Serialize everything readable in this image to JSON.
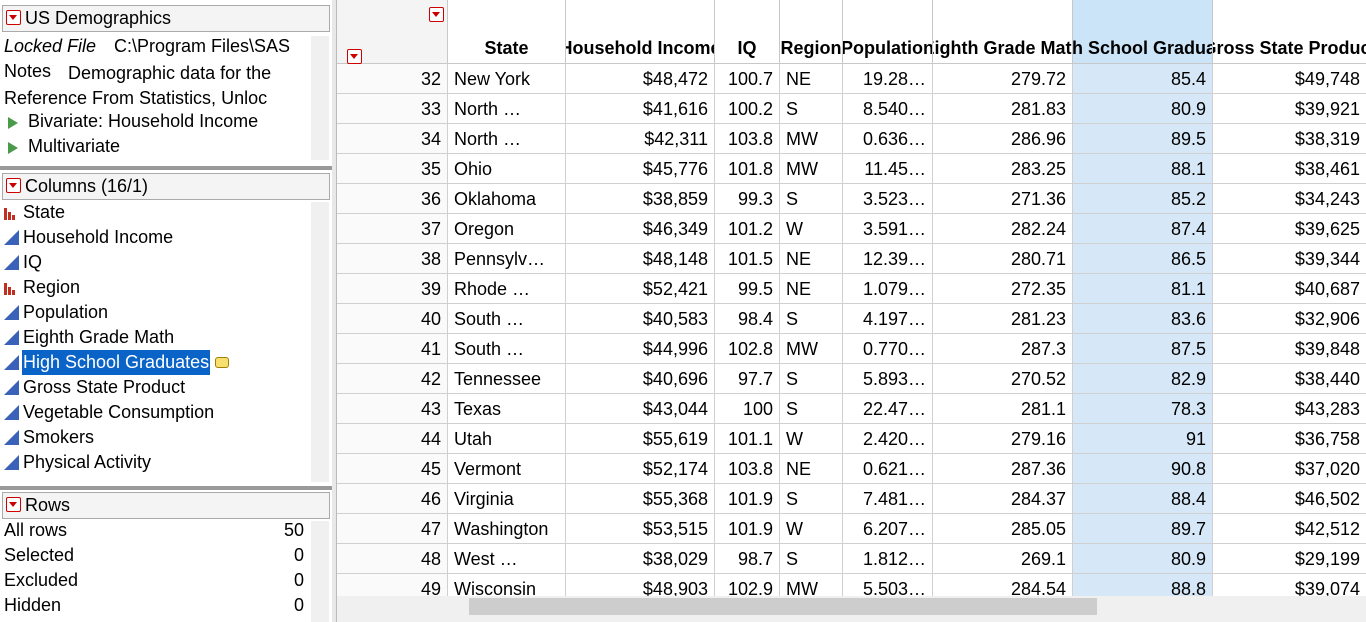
{
  "table_panel": {
    "title": "US Demographics",
    "locked_label": "Locked File",
    "locked_path": "C:\\Program Files\\SAS",
    "notes_label": "Notes",
    "notes_text": "Demographic data for the Reference From Statistics, Unloc",
    "scripts": [
      "Bivariate: Household Income",
      "Multivariate"
    ]
  },
  "columns_panel": {
    "title": "Columns (16/1)",
    "items": [
      {
        "name": "State",
        "icon": "nominal"
      },
      {
        "name": "Household Income",
        "icon": "continuous"
      },
      {
        "name": "IQ",
        "icon": "continuous"
      },
      {
        "name": "Region",
        "icon": "nominal"
      },
      {
        "name": "Population",
        "icon": "continuous"
      },
      {
        "name": "Eighth Grade Math",
        "icon": "continuous"
      },
      {
        "name": "High School Graduates",
        "icon": "continuous",
        "selected": true
      },
      {
        "name": "Gross State Product",
        "icon": "continuous"
      },
      {
        "name": "Vegetable Consumption",
        "icon": "continuous"
      },
      {
        "name": "Smokers",
        "icon": "continuous"
      },
      {
        "name": "Physical Activity",
        "icon": "continuous"
      }
    ]
  },
  "rows_panel": {
    "title": "Rows",
    "items": [
      {
        "label": "All rows",
        "value": "50"
      },
      {
        "label": "Selected",
        "value": "0"
      },
      {
        "label": "Excluded",
        "value": "0"
      },
      {
        "label": "Hidden",
        "value": "0"
      }
    ]
  },
  "table": {
    "headers": [
      "State",
      "Household Income",
      "IQ",
      "Region",
      "Population",
      "Eighth Grade Math",
      "High School Graduates",
      "Gross State Product"
    ],
    "selected_column": 6,
    "rows": [
      {
        "row": "32",
        "marker": "#6a7fd0",
        "cells": [
          "New York",
          "$48,472",
          "100.7",
          "NE",
          "19.28…",
          "279.72",
          "85.4",
          "$49,748"
        ]
      },
      {
        "row": "33",
        "marker": "#9aa2c8",
        "cells": [
          "North …",
          "$41,616",
          "100.2",
          "S",
          "8.540…",
          "281.83",
          "80.9",
          "$39,921"
        ]
      },
      {
        "row": "34",
        "marker": "#d9a0a0",
        "cells": [
          "North …",
          "$42,311",
          "103.8",
          "MW",
          "0.636…",
          "286.96",
          "89.5",
          "$38,319"
        ]
      },
      {
        "row": "35",
        "marker": "#aaaaaa",
        "cells": [
          "Ohio",
          "$45,776",
          "101.8",
          "MW",
          "11.45…",
          "283.25",
          "88.1",
          "$38,461"
        ]
      },
      {
        "row": "36",
        "marker": "#5a6fd8",
        "cells": [
          "Oklahoma",
          "$38,859",
          "99.3",
          "S",
          "3.523…",
          "271.36",
          "85.2",
          "$34,243"
        ]
      },
      {
        "row": "37",
        "marker": "#e03030",
        "cells": [
          "Oregon",
          "$46,349",
          "101.2",
          "W",
          "3.591…",
          "282.24",
          "87.4",
          "$39,625"
        ]
      },
      {
        "row": "38",
        "marker": "#aaaaaa",
        "cells": [
          "Pennsylv…",
          "$48,148",
          "101.5",
          "NE",
          "12.39…",
          "280.71",
          "86.5",
          "$39,344"
        ]
      },
      {
        "row": "39",
        "marker": "#aaaaaa",
        "cells": [
          "Rhode …",
          "$52,421",
          "99.5",
          "NE",
          "1.079…",
          "272.35",
          "81.1",
          "$40,687"
        ]
      },
      {
        "row": "40",
        "marker": "#aaaaaa",
        "cells": [
          "South …",
          "$40,583",
          "98.4",
          "S",
          "4.197…",
          "281.23",
          "83.6",
          "$32,906"
        ]
      },
      {
        "row": "41",
        "marker": "#e03030",
        "cells": [
          "South …",
          "$44,996",
          "102.8",
          "MW",
          "0.770…",
          "287.3",
          "87.5",
          "$39,848"
        ]
      },
      {
        "row": "42",
        "marker": "#4060e0",
        "cells": [
          "Tennessee",
          "$40,696",
          "97.7",
          "S",
          "5.893…",
          "270.52",
          "82.9",
          "$38,440"
        ]
      },
      {
        "row": "43",
        "marker": "#9aa2c8",
        "cells": [
          "Texas",
          "$43,044",
          "100",
          "S",
          "22.47…",
          "281.1",
          "78.3",
          "$43,283"
        ]
      },
      {
        "row": "44",
        "marker": "#e03030",
        "cells": [
          "Utah",
          "$55,619",
          "101.1",
          "W",
          "2.420…",
          "279.16",
          "91",
          "$36,758"
        ]
      },
      {
        "row": "45",
        "marker": "#e03030",
        "cells": [
          "Vermont",
          "$52,174",
          "103.8",
          "NE",
          "0.621…",
          "287.36",
          "90.8",
          "$37,020"
        ]
      },
      {
        "row": "46",
        "marker": "#d9a0a0",
        "cells": [
          "Virginia",
          "$55,368",
          "101.9",
          "S",
          "7.481…",
          "284.37",
          "88.4",
          "$46,502"
        ]
      },
      {
        "row": "47",
        "marker": "#e03030",
        "cells": [
          "Washington",
          "$53,515",
          "101.9",
          "W",
          "6.207…",
          "285.05",
          "89.7",
          "$42,512"
        ]
      },
      {
        "row": "48",
        "marker": "#aaaaaa",
        "cells": [
          "West …",
          "$38,029",
          "98.7",
          "S",
          "1.812…",
          "269.1",
          "80.9",
          "$29,199"
        ]
      },
      {
        "row": "49",
        "marker": "#e03030",
        "cells": [
          "Wisconsin",
          "$48,903",
          "102.9",
          "MW",
          "5.503…",
          "284.54",
          "88.8",
          "$39,074"
        ]
      }
    ]
  }
}
